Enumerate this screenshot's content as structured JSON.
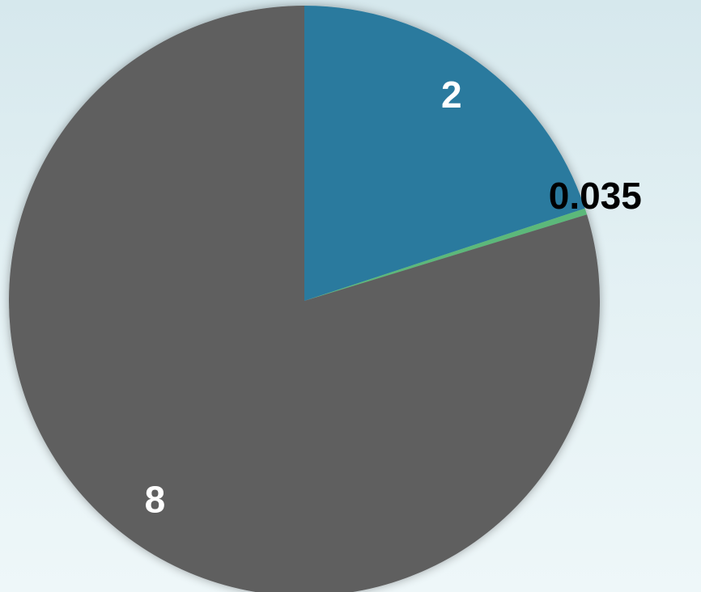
{
  "chart_data": {
    "type": "pie",
    "values": [
      2,
      0.035,
      8
    ],
    "colors": [
      "#2b7a9e",
      "#5cb87a",
      "#5e5e5e"
    ]
  }
}
